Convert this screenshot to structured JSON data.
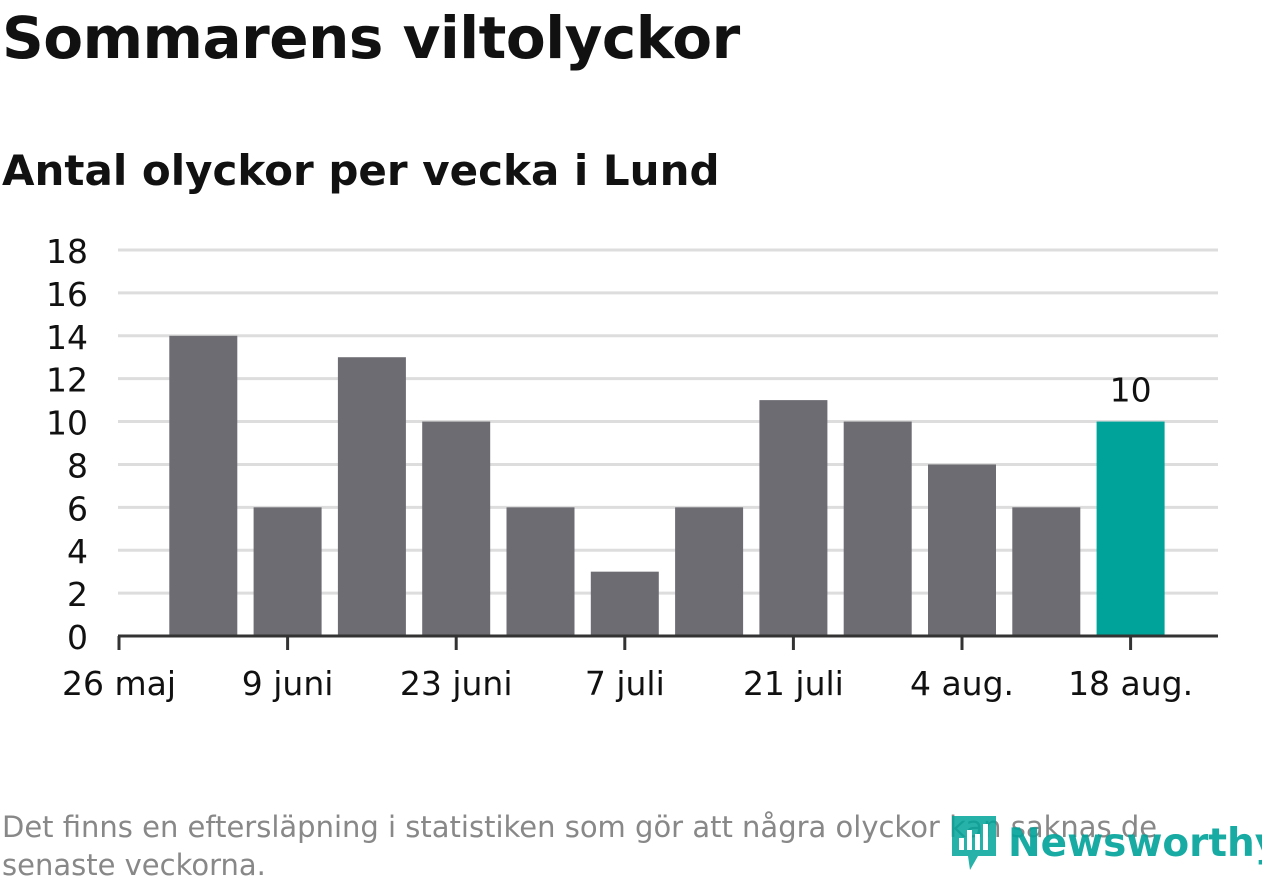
{
  "header": {
    "title": "Sommarens viltolyckor",
    "subtitle": "Antal olyckor per vecka i Lund"
  },
  "chart_data": {
    "type": "bar",
    "title": "Sommarens viltolyckor",
    "subtitle": "Antal olyckor per vecka i Lund",
    "xlabel": "",
    "ylabel": "",
    "x_dates": [
      "2-jun",
      "9-jun",
      "16-jun",
      "23-jun",
      "30-jun",
      "7-jul",
      "14-jul",
      "21-jul",
      "28-jul",
      "4-aug",
      "11-aug",
      "18-aug"
    ],
    "values": [
      14,
      6,
      13,
      10,
      6,
      3,
      6,
      11,
      10,
      8,
      6,
      10
    ],
    "highlight_index": 11,
    "highlight_label": "10",
    "x_tick_labels": [
      "26 maj",
      "9 juni",
      "23 juni",
      "7 juli",
      "21 juli",
      "4 aug.",
      "18 aug."
    ],
    "y_ticks": [
      0,
      2,
      4,
      6,
      8,
      10,
      12,
      14,
      16,
      18
    ],
    "ylim": [
      0,
      18
    ],
    "grid": true,
    "colors": {
      "bar": "#6d6c72",
      "highlight": "#00a39a",
      "grid": "#dddddd",
      "axis": "#333333"
    }
  },
  "footnote": "Det finns en eftersläpning i statistiken som gör att några olyckor kan saknas de senaste veckorna.",
  "logo": {
    "text": "Newsworthy",
    "icon": "newsworthy-logo-icon",
    "color": "#00a39a"
  }
}
